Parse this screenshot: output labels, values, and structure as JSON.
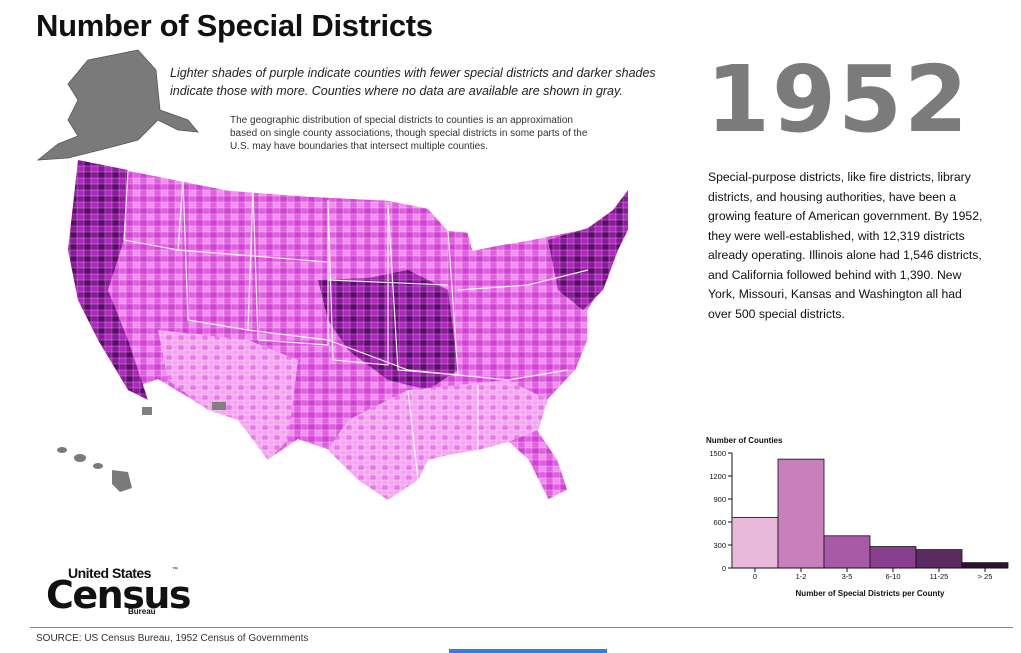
{
  "title": "Number of Special Districts",
  "subtitle": "Lighter shades of purple indicate counties with fewer special districts and darker shades indicate those with more.  Counties where no data are available are shown in gray.",
  "note": "The geographic distribution of special districts to counties is an approximation based on single county associations, though special districts in some parts of the U.S. may have boundaries that intersect multiple counties.",
  "year": "1952",
  "body_text": "Special-purpose districts, like fire districts, library districts, and housing authorities, have been a growing feature of American government. By 1952, they were well-established, with 12,319 districts already operating. Illinois alone had 1,546 districts, and California followed behind with 1,390. New York, Missouri, Kansas and Washington all had over 500 special districts.",
  "logo": {
    "line1": "United States",
    "line2": "Census",
    "line3": "Bureau",
    "tm": "™"
  },
  "source": "SOURCE: US Census Bureau, 1952 Census of Governments",
  "colors": {
    "bin_0": "#e9b9dc",
    "bin_1_2": "#c880bd",
    "bin_3_5": "#a85aa6",
    "bin_6_10": "#8a3e8e",
    "bin_11_25": "#5b2a5e",
    "bin_gt_25": "#2a1430",
    "no_data": "#808080",
    "map_light": "#f07cf0",
    "map_mid": "#c030c8",
    "map_dark": "#5a0a6a"
  },
  "chart_data": {
    "type": "bar",
    "title": "Number of Counties",
    "xlabel": "Number of Special Districts per County",
    "ylabel": "Number of Counties",
    "categories": [
      "0",
      "1-2",
      "3-5",
      "6-10",
      "11-25",
      "> 25"
    ],
    "values": [
      660,
      1420,
      420,
      280,
      240,
      70
    ],
    "yticks": [
      0,
      300,
      600,
      900,
      1200,
      1500
    ],
    "ylim": [
      0,
      1500
    ],
    "legend": "none",
    "grid": false
  }
}
